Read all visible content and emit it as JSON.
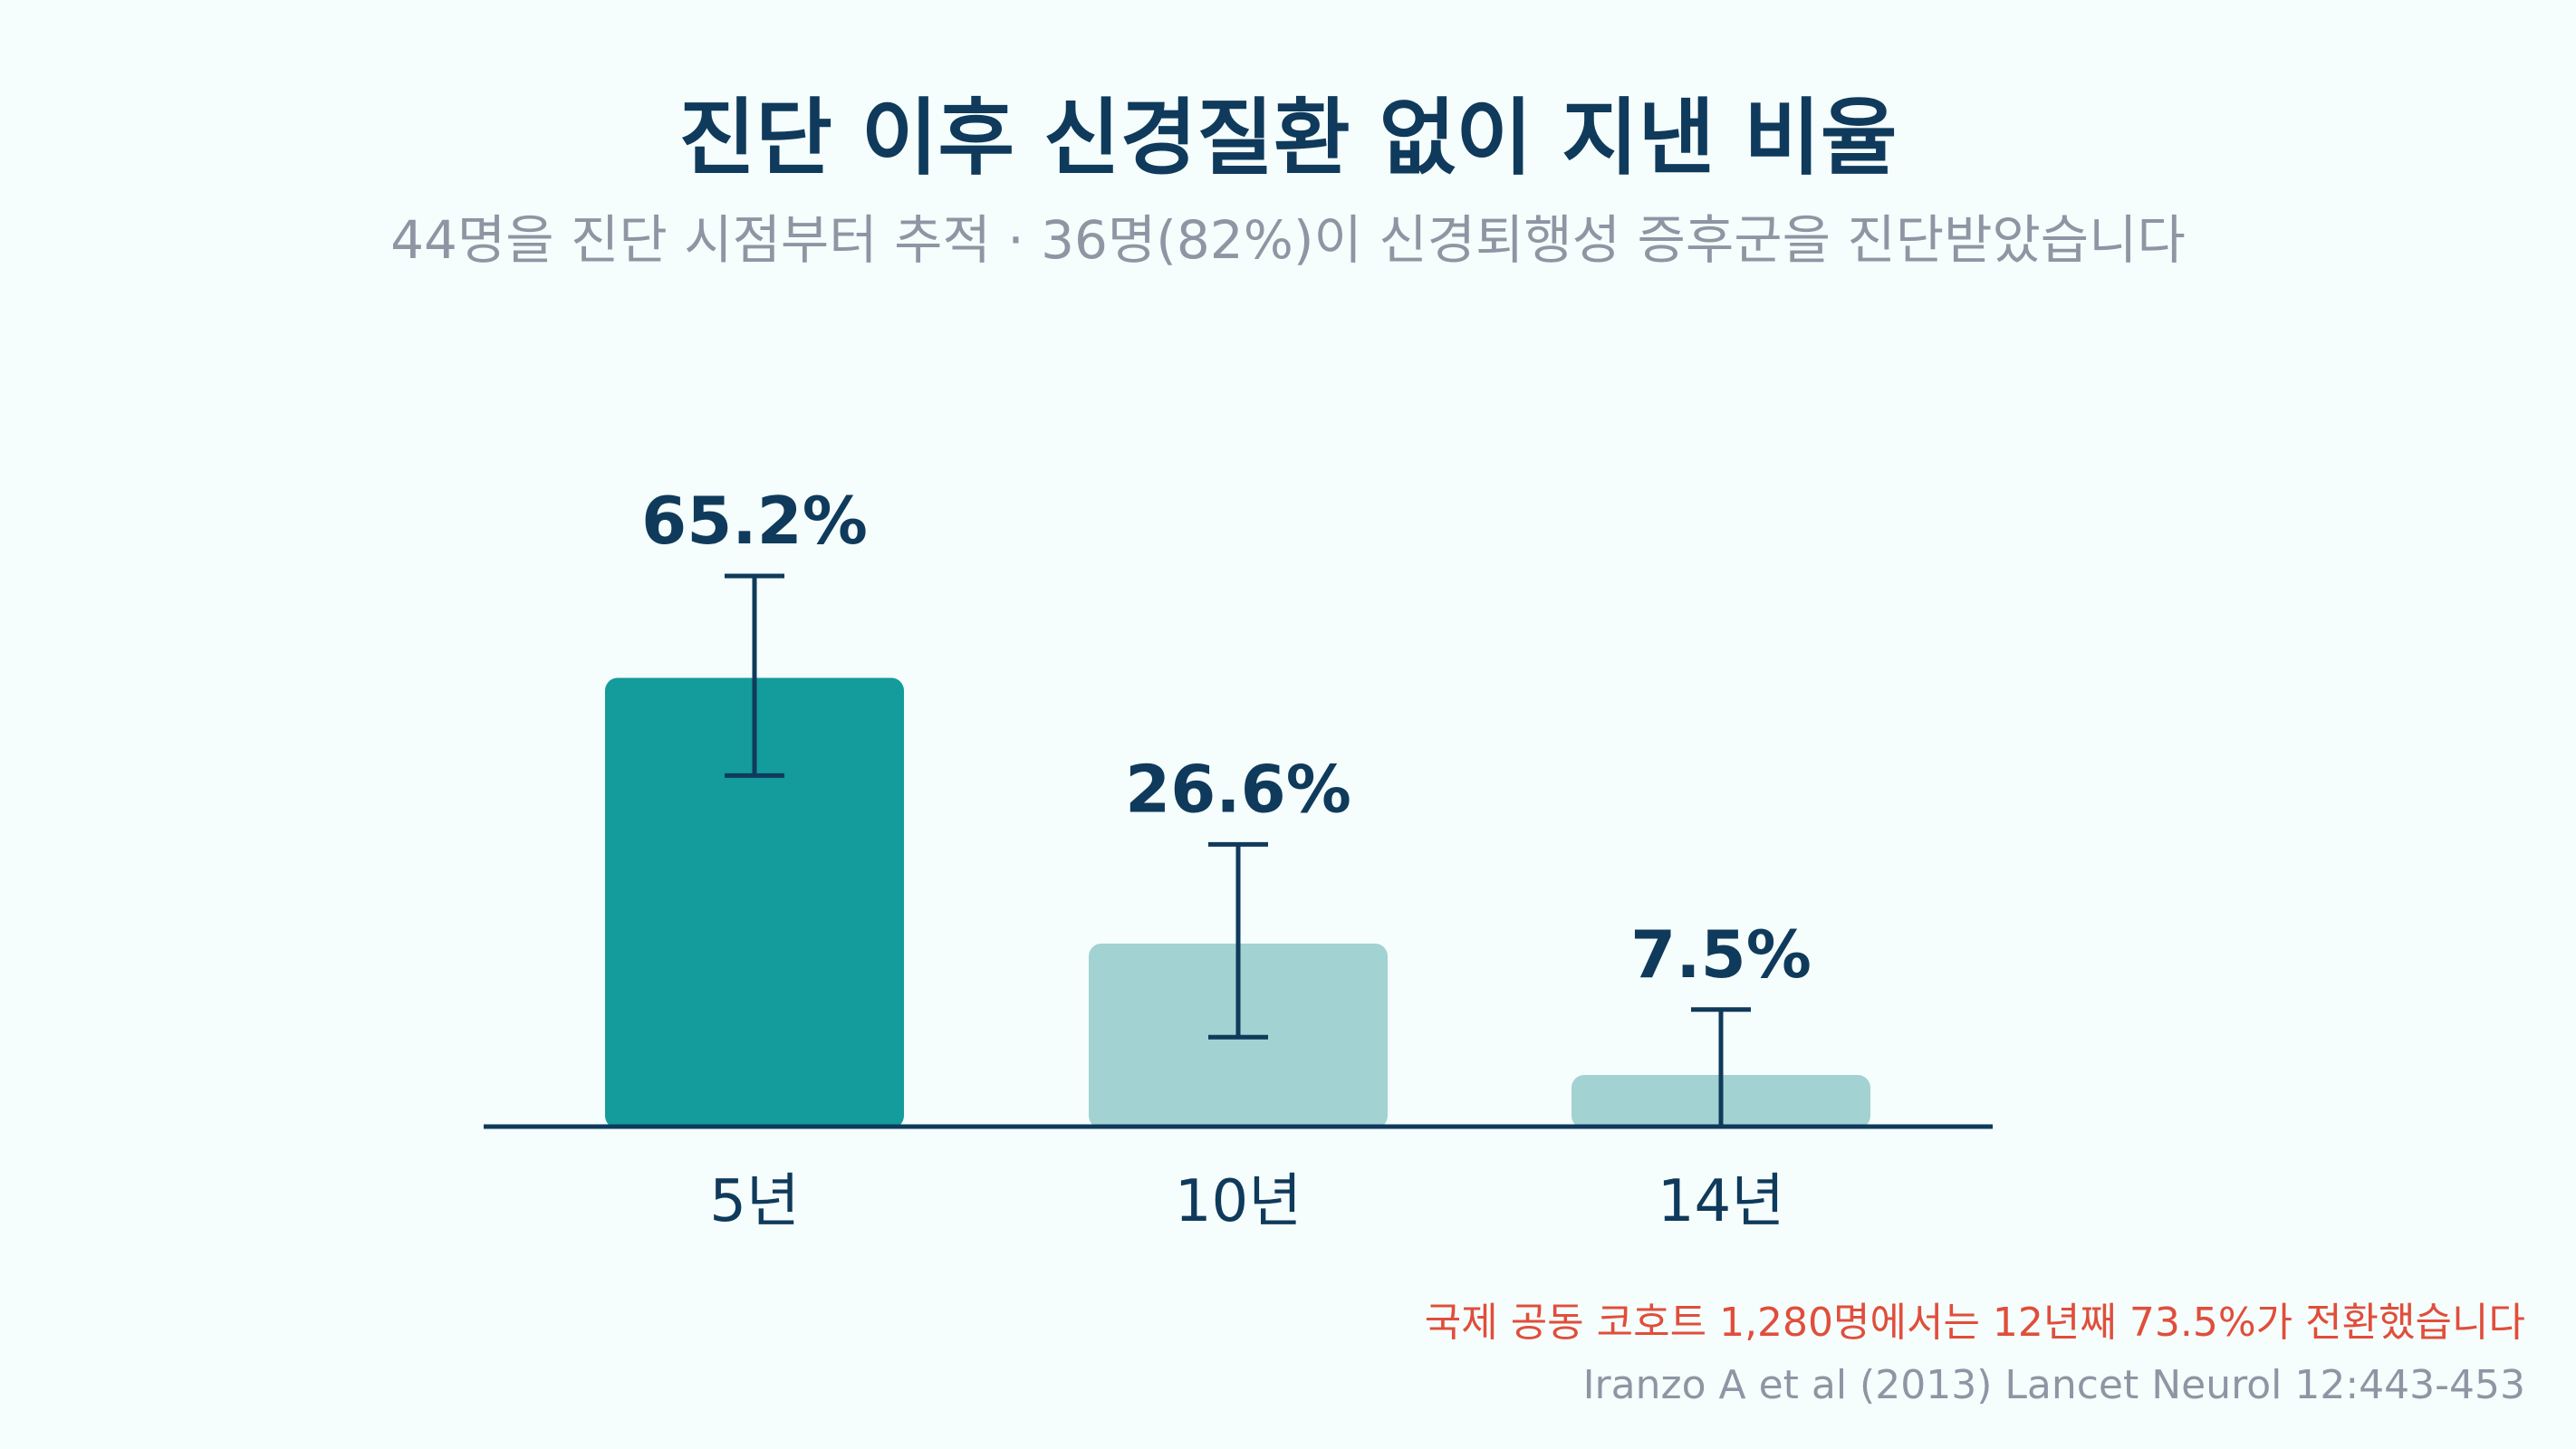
{
  "chart_data": {
    "type": "bar",
    "title": "진단 이후 신경질환 없이 지낸 비율",
    "subtitle": "44명을 진단 시점부터 추적 · 36명(82%)이 신경퇴행성 증후군을 진단받았습니다",
    "categories": [
      "5년",
      "10년",
      "14년"
    ],
    "values": [
      65.2,
      26.6,
      7.5
    ],
    "value_labels": [
      "65.2%",
      "26.6%",
      "7.5%"
    ],
    "error_bars": [
      {
        "low": 51.0,
        "high": 80.0
      },
      {
        "low": 13.0,
        "high": 41.0
      },
      {
        "low": 0.0,
        "high": 17.0
      }
    ],
    "highlighted_index": 0,
    "ylim": [
      0,
      100
    ],
    "grid": false,
    "xlabel": "",
    "ylabel": ""
  },
  "colors": {
    "highlight_bar": "#149b9b",
    "muted_bar": "#a2d2d2",
    "error_bar": "#0f3a5b",
    "axis": "#0f3a5b",
    "value_label": "#0f3a5b",
    "category_label": "#0f3a5b",
    "note": "#e04e3b",
    "source": "#8e96a3",
    "background": "#f5fefd"
  },
  "footer": {
    "note": "국제 공동 코호트 1,280명에서는 12년째 73.5%가 전환했습니다",
    "source": "Iranzo A et al (2013) Lancet Neurol 12:443-453"
  }
}
